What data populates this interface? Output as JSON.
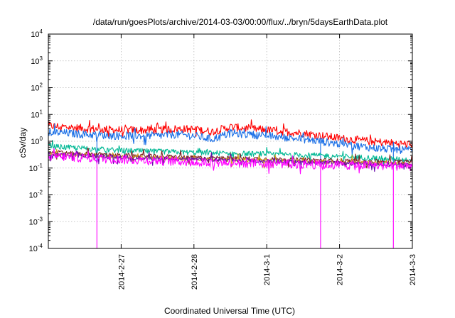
{
  "chart_data": {
    "type": "line",
    "title": "/data/run/goesPlots/archive/2014-03-03/00:00/flux/../bryn/5daysEarthData.plot",
    "xlabel": "Coordinated Universal Time (UTC)",
    "ylabel": "cSv/day",
    "yscale": "log",
    "ylim": [
      0.0001,
      10000
    ],
    "xlim": [
      "2014-02-26T00:00",
      "2014-03-03T00:00"
    ],
    "grid": true,
    "legend": "none",
    "y_ticks": [
      {
        "value": 0.0001,
        "base": "10",
        "exp": "-4"
      },
      {
        "value": 0.001,
        "base": "10",
        "exp": "-3"
      },
      {
        "value": 0.01,
        "base": "10",
        "exp": "-2"
      },
      {
        "value": 0.1,
        "base": "10",
        "exp": "-1"
      },
      {
        "value": 1,
        "base": "10",
        "exp": "0"
      },
      {
        "value": 10,
        "base": "10",
        "exp": "1"
      },
      {
        "value": 100,
        "base": "10",
        "exp": "2"
      },
      {
        "value": 1000,
        "base": "10",
        "exp": "3"
      },
      {
        "value": 10000,
        "base": "10",
        "exp": "4"
      }
    ],
    "x_ticks": [
      {
        "value": "2014-02-27T00:00",
        "label": "2014-2-27"
      },
      {
        "value": "2014-02-28T00:00",
        "label": "2014-2-28"
      },
      {
        "value": "2014-03-01T00:00",
        "label": "2014-3-1"
      },
      {
        "value": "2014-03-02T00:00",
        "label": "2014-3-2"
      },
      {
        "value": "2014-03-03T00:00",
        "label": "2014-3-3"
      }
    ],
    "series": [
      {
        "color": "#ff0000",
        "noise": 0.3,
        "points": [
          [
            "2014-02-26T00:00",
            3.8
          ],
          [
            "2014-02-26T12:00",
            3.0
          ],
          [
            "2014-02-27T00:00",
            2.6
          ],
          [
            "2014-02-27T12:00",
            2.6
          ],
          [
            "2014-02-27T18:00",
            2.9
          ],
          [
            "2014-02-28T00:00",
            2.8
          ],
          [
            "2014-02-28T06:00",
            2.3
          ],
          [
            "2014-02-28T12:00",
            3.4
          ],
          [
            "2014-02-28T18:00",
            3.0
          ],
          [
            "2014-03-01T00:00",
            2.6
          ],
          [
            "2014-03-01T12:00",
            2.0
          ],
          [
            "2014-03-02T00:00",
            1.3
          ],
          [
            "2014-03-02T12:00",
            0.95
          ],
          [
            "2014-03-03T00:00",
            0.75
          ]
        ],
        "dropouts": []
      },
      {
        "color": "#1a6fe6",
        "noise": 0.3,
        "points": [
          [
            "2014-02-26T00:00",
            2.2
          ],
          [
            "2014-02-26T12:00",
            1.8
          ],
          [
            "2014-02-27T00:00",
            1.6
          ],
          [
            "2014-02-27T12:00",
            1.6
          ],
          [
            "2014-02-27T18:00",
            1.8
          ],
          [
            "2014-02-28T00:00",
            1.6
          ],
          [
            "2014-02-28T06:00",
            1.2
          ],
          [
            "2014-02-28T12:00",
            2.0
          ],
          [
            "2014-02-28T18:00",
            1.8
          ],
          [
            "2014-03-01T00:00",
            1.6
          ],
          [
            "2014-03-01T12:00",
            1.2
          ],
          [
            "2014-03-02T00:00",
            0.8
          ],
          [
            "2014-03-02T12:00",
            0.55
          ],
          [
            "2014-03-03T00:00",
            0.45
          ]
        ],
        "dropouts": [
          {
            "x": "2014-02-26T16:00",
            "y": 0.15
          },
          {
            "x": "2014-03-01T17:45",
            "y": 0.12
          },
          {
            "x": "2014-03-02T17:45",
            "y": 0.15
          }
        ]
      },
      {
        "color": "#00b894",
        "noise": 0.2,
        "points": [
          [
            "2014-02-26T00:00",
            0.65
          ],
          [
            "2014-02-27T00:00",
            0.45
          ],
          [
            "2014-02-28T00:00",
            0.38
          ],
          [
            "2014-03-01T00:00",
            0.33
          ],
          [
            "2014-03-02T00:00",
            0.28
          ],
          [
            "2014-03-03T00:00",
            0.2
          ]
        ],
        "dropouts": []
      },
      {
        "color": "#7a2020",
        "noise": 0.15,
        "points": [
          [
            "2014-02-26T00:00",
            0.4
          ],
          [
            "2014-02-27T00:00",
            0.3
          ],
          [
            "2014-02-28T00:00",
            0.25
          ],
          [
            "2014-03-01T00:00",
            0.22
          ],
          [
            "2014-03-02T00:00",
            0.19
          ],
          [
            "2014-03-03T00:00",
            0.17
          ]
        ],
        "dropouts": []
      },
      {
        "color": "#d4a017",
        "noise": 0.15,
        "points": [
          [
            "2014-02-26T00:00",
            0.35
          ],
          [
            "2014-02-27T00:00",
            0.26
          ],
          [
            "2014-02-28T00:00",
            0.22
          ],
          [
            "2014-03-01T00:00",
            0.19
          ],
          [
            "2014-03-02T00:00",
            0.16
          ],
          [
            "2014-03-03T00:00",
            0.14
          ]
        ],
        "dropouts": []
      },
      {
        "color": "#6a0dad",
        "noise": 0.15,
        "points": [
          [
            "2014-02-26T00:00",
            0.33
          ],
          [
            "2014-02-27T00:00",
            0.25
          ],
          [
            "2014-02-28T00:00",
            0.21
          ],
          [
            "2014-03-01T00:00",
            0.18
          ],
          [
            "2014-03-02T00:00",
            0.15
          ],
          [
            "2014-03-03T00:00",
            0.13
          ]
        ],
        "dropouts": []
      },
      {
        "color": "#ff00ff",
        "noise": 0.35,
        "points": [
          [
            "2014-02-26T00:00",
            0.28
          ],
          [
            "2014-02-27T00:00",
            0.21
          ],
          [
            "2014-02-28T00:00",
            0.17
          ],
          [
            "2014-03-01T00:00",
            0.15
          ],
          [
            "2014-03-02T00:00",
            0.13
          ],
          [
            "2014-03-03T00:00",
            0.12
          ]
        ],
        "dropouts": [
          {
            "x": "2014-02-26T16:00",
            "y": 0.0001
          },
          {
            "x": "2014-03-01T17:45",
            "y": 0.0001
          },
          {
            "x": "2014-03-02T17:45",
            "y": 0.0001
          }
        ]
      }
    ]
  }
}
